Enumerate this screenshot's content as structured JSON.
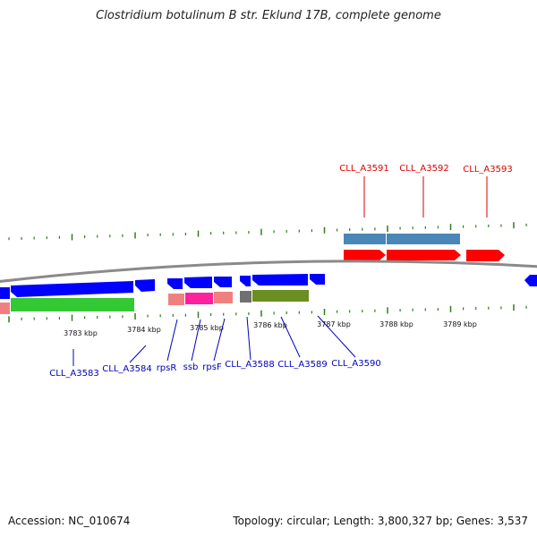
{
  "title": "Clostridium botulinum B str. Eklund 17B, complete genome",
  "footer": {
    "accession": "Accession: NC_010674",
    "summary": "Topology: circular; Length: 3,800,327 bp; Genes: 3,537"
  },
  "colors": {
    "backbone": "#8a8a8a",
    "tick": "#2e7d18",
    "forward_label": "#dd0000",
    "reverse_label": "#0000bb",
    "gene_blue": "#0000ff",
    "gene_red": "#ff0000"
  },
  "ruler": [
    {
      "label": "3783 kbp"
    },
    {
      "label": "3784 kbp"
    },
    {
      "label": "3785 kbp"
    },
    {
      "label": "3786 kbp"
    },
    {
      "label": "3787 kbp"
    },
    {
      "label": "3788 kbp"
    },
    {
      "label": "3789 kbp"
    }
  ],
  "labels_top": [
    "CLL_A3591",
    "CLL_A3592",
    "CLL_A3593"
  ],
  "labels_bottom": [
    "CLL_A3583",
    "CLL_A3584",
    "rpsR",
    "ssb",
    "rpsF",
    "CLL_A3588",
    "CLL_A3589",
    "CLL_A3590"
  ]
}
